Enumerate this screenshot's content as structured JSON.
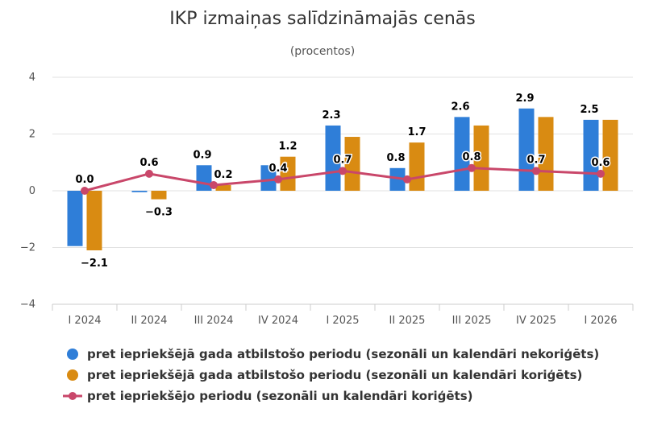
{
  "chart_data": {
    "type": "bar",
    "title": "IKP izmaiņas salīdzināmajās cenās",
    "subtitle": "(procentos)",
    "categories": [
      "I 2024",
      "II 2024",
      "III 2024",
      "IV 2024",
      "I 2025",
      "II 2025",
      "III 2025",
      "IV 2025",
      "I 2026"
    ],
    "ylim": [
      -4,
      4
    ],
    "yticks": [
      "4",
      "2",
      "0",
      "−2",
      "−4"
    ],
    "ytick_values": [
      4,
      2,
      0,
      -2,
      -4
    ],
    "grid": true,
    "legend_position": "bottom",
    "series": [
      {
        "name": "pret iepriekšējā gada atbilstošo periodu (sezonāli un kalendāri nekoriģēts)",
        "type": "bar",
        "color": "#2f7ed8",
        "values": [
          -1.95,
          -0.05,
          0.9,
          0.9,
          2.3,
          0.8,
          2.6,
          2.9,
          2.5
        ],
        "labels": [
          "",
          "",
          "0.9",
          "",
          "2.3",
          "0.8",
          "2.6",
          "2.9",
          "2.5"
        ]
      },
      {
        "name": "pret iepriekšējā gada atbilstošo periodu (sezonāli un kalendāri koriģēts)",
        "type": "bar",
        "color": "#d98b12",
        "values": [
          -2.1,
          -0.3,
          0.2,
          1.2,
          1.9,
          1.7,
          2.3,
          2.6,
          2.5
        ],
        "labels": [
          "−2.1",
          "−0.3",
          "0.2",
          "1.2",
          "",
          "1.7",
          "",
          "",
          ""
        ]
      },
      {
        "name": "pret iepriekšējo periodu (sezonāli un kalendāri koriģēts)",
        "type": "line",
        "color": "#c9476a",
        "values": [
          0.0,
          0.6,
          0.2,
          0.4,
          0.7,
          0.4,
          0.8,
          0.7,
          0.6
        ],
        "labels": [
          "0.0",
          "0.6",
          "",
          "0.4",
          "0.7",
          "",
          "0.8",
          "0.7",
          "0.6"
        ]
      }
    ]
  }
}
